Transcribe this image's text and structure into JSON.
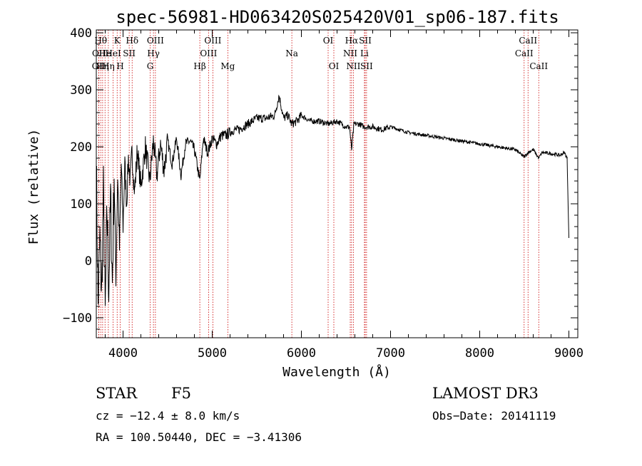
{
  "chart_data": {
    "type": "line",
    "title": "spec-56981-HD063420S025420V01_sp06-187.fits",
    "xlabel": "Wavelength (Å)",
    "ylabel": "Flux (relative)",
    "xlim": [
      3700,
      9100
    ],
    "ylim": [
      -135,
      405
    ],
    "xticks": [
      4000,
      5000,
      6000,
      7000,
      8000,
      9000
    ],
    "yticks": [
      -100,
      0,
      100,
      200,
      300,
      400
    ],
    "xtick_labels": [
      "4000",
      "5000",
      "6000",
      "7000",
      "8000",
      "9000"
    ],
    "ytick_labels": [
      "−100",
      "0",
      "100",
      "200",
      "300",
      "400"
    ],
    "series": [
      {
        "name": "flux",
        "color": "#000000",
        "x": [
          3700,
          3720,
          3740,
          3760,
          3780,
          3800,
          3820,
          3840,
          3860,
          3880,
          3900,
          3920,
          3940,
          3960,
          3980,
          4000,
          4020,
          4040,
          4060,
          4080,
          4100,
          4130,
          4160,
          4200,
          4250,
          4300,
          4340,
          4380,
          4420,
          4460,
          4500,
          4550,
          4600,
          4650,
          4700,
          4750,
          4800,
          4861,
          4900,
          4950,
          5000,
          5050,
          5100,
          5150,
          5200,
          5250,
          5300,
          5400,
          5500,
          5600,
          5700,
          5750,
          5800,
          5850,
          5890,
          5950,
          6000,
          6100,
          6200,
          6300,
          6400,
          6500,
          6540,
          6563,
          6590,
          6650,
          6700,
          6800,
          6900,
          7000,
          7200,
          7400,
          7600,
          7800,
          8000,
          8200,
          8400,
          8498,
          8542,
          8600,
          8662,
          8700,
          8800,
          8900,
          8950,
          8980,
          9000
        ],
        "y": [
          170,
          -80,
          40,
          -60,
          120,
          -100,
          90,
          -50,
          110,
          -40,
          150,
          -30,
          150,
          20,
          170,
          60,
          170,
          100,
          180,
          140,
          190,
          120,
          195,
          130,
          200,
          140,
          210,
          150,
          205,
          160,
          210,
          170,
          215,
          150,
          205,
          210,
          195,
          140,
          215,
          190,
          215,
          205,
          220,
          220,
          225,
          230,
          230,
          240,
          250,
          250,
          255,
          290,
          250,
          255,
          240,
          245,
          255,
          245,
          245,
          240,
          245,
          235,
          235,
          195,
          240,
          240,
          235,
          235,
          230,
          235,
          225,
          220,
          215,
          210,
          205,
          200,
          195,
          182,
          190,
          195,
          180,
          190,
          188,
          185,
          190,
          180,
          40
        ]
      }
    ],
    "line_markers": [
      {
        "wavelength": 3727,
        "label": "OII",
        "row": 2,
        "style": "italic"
      },
      {
        "wavelength": 3729,
        "label": "OII",
        "row": 1,
        "style": "normal"
      },
      {
        "wavelength": 3750,
        "label": "Hθ",
        "row": 0,
        "style": "normal"
      },
      {
        "wavelength": 3771,
        "label": "Hη",
        "row": 2,
        "style": "normal"
      },
      {
        "wavelength": 3798,
        "label": "He",
        "row": 1,
        "style": "normal"
      },
      {
        "wavelength": 3835,
        "label": "Hη",
        "row": 2,
        "style": "normal"
      },
      {
        "wavelength": 3889,
        "label": "HeI",
        "row": 1,
        "style": "normal"
      },
      {
        "wavelength": 3934,
        "label": "K",
        "row": 0,
        "style": "normal"
      },
      {
        "wavelength": 3968,
        "label": "H",
        "row": 2,
        "style": "normal"
      },
      {
        "wavelength": 4069,
        "label": "SII",
        "row": 1,
        "style": "normal"
      },
      {
        "wavelength": 4102,
        "label": "Hδ",
        "row": 0,
        "style": "normal"
      },
      {
        "wavelength": 4304,
        "label": "G",
        "row": 2,
        "style": "normal"
      },
      {
        "wavelength": 4341,
        "label": "Hγ",
        "row": 1,
        "style": "normal"
      },
      {
        "wavelength": 4363,
        "label": "OIII",
        "row": 0,
        "style": "normal"
      },
      {
        "wavelength": 4861,
        "label": "Hβ",
        "row": 2,
        "style": "normal"
      },
      {
        "wavelength": 4959,
        "label": "OIII",
        "row": 1,
        "style": "normal"
      },
      {
        "wavelength": 5007,
        "label": "OIII",
        "row": 0,
        "style": "normal"
      },
      {
        "wavelength": 5175,
        "label": "Mg",
        "row": 2,
        "style": "normal"
      },
      {
        "wavelength": 5893,
        "label": "Na",
        "row": 1,
        "style": "normal"
      },
      {
        "wavelength": 6300,
        "label": "OI",
        "row": 0,
        "style": "normal"
      },
      {
        "wavelength": 6364,
        "label": "OI",
        "row": 2,
        "style": "normal"
      },
      {
        "wavelength": 6548,
        "label": "NII",
        "row": 1,
        "style": "normal"
      },
      {
        "wavelength": 6563,
        "label": "Hα",
        "row": 0,
        "style": "normal"
      },
      {
        "wavelength": 6583,
        "label": "NII",
        "row": 2,
        "style": "normal"
      },
      {
        "wavelength": 6707,
        "label": "Li",
        "row": 1,
        "style": "normal"
      },
      {
        "wavelength": 6716,
        "label": "SII",
        "row": 0,
        "style": "normal"
      },
      {
        "wavelength": 6731,
        "label": "SII",
        "row": 2,
        "style": "normal"
      },
      {
        "wavelength": 8498,
        "label": "CaII",
        "row": 1,
        "style": "normal"
      },
      {
        "wavelength": 8542,
        "label": "CaII",
        "row": 0,
        "style": "normal"
      },
      {
        "wavelength": 8662,
        "label": "CaII",
        "row": 2,
        "style": "normal"
      }
    ]
  },
  "info": {
    "obj_class": "STAR",
    "subclass": "F5",
    "survey": "LAMOST DR3",
    "cz": "cz = −12.4 ± 8.0 km/s",
    "obs_date": "Obs−Date: 20141119",
    "radec": "RA = 100.50440, DEC =  −3.41306"
  },
  "colors": {
    "axis": "#000000",
    "spectrum": "#000000",
    "marker": "#cc0000"
  }
}
